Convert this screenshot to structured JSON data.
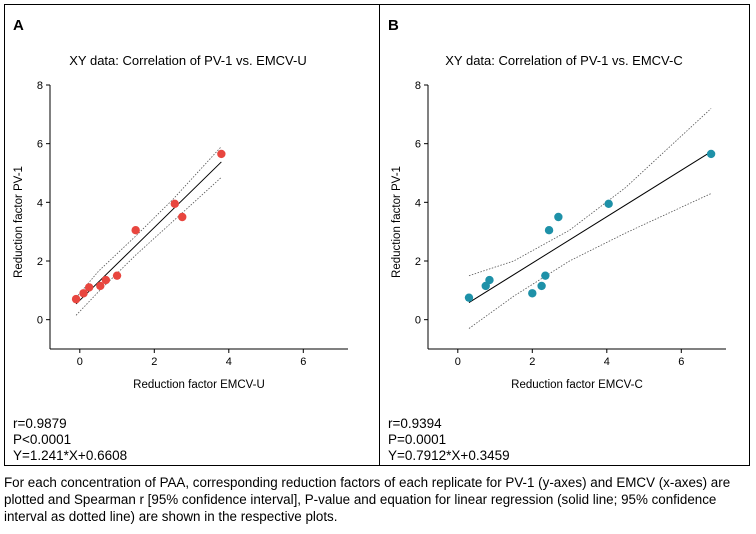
{
  "panels": [
    {
      "letter": "A",
      "stats": [
        "r=0.9879",
        "P<0.0001",
        "Y=1.241*X+0.6608"
      ]
    },
    {
      "letter": "B",
      "stats": [
        "r=0.9394",
        "P=0.0001",
        "Y=0.7912*X+0.3459"
      ]
    }
  ],
  "caption": "For each concentration of PAA, corresponding reduction factors of each replicate for PV-1 (y-axes) and EMCV (x-axes) are plotted and Spearman r [95% confidence interval], P-value and equation for linear regression (solid line; 95% confidence interval as dotted line) are shown in the respective plots.",
  "chart_data": [
    {
      "type": "scatter",
      "title": "XY data: Correlation of PV-1 vs. EMCV-U",
      "xlabel": "Reduction factor EMCV-U",
      "ylabel": "Reduction factor PV-1",
      "xlim": [
        -0.8,
        7.2
      ],
      "ylim": [
        -1,
        8
      ],
      "xticks": [
        0,
        2,
        4,
        6
      ],
      "yticks": [
        0,
        2,
        4,
        6,
        8
      ],
      "point_color": "#e8463f",
      "x": [
        -0.1,
        0.1,
        0.25,
        0.55,
        0.7,
        1.0,
        1.5,
        2.55,
        2.75,
        3.8
      ],
      "y": [
        0.7,
        0.9,
        1.1,
        1.15,
        1.35,
        1.5,
        3.05,
        3.95,
        3.5,
        5.65
      ],
      "regression": {
        "slope": 1.241,
        "intercept": 0.6608,
        "x_range": [
          -0.1,
          3.8
        ]
      },
      "ci_upper": [
        [
          -0.1,
          0.75
        ],
        [
          0.5,
          1.65
        ],
        [
          1.5,
          2.85
        ],
        [
          2.5,
          4.1
        ],
        [
          3.8,
          5.9
        ]
      ],
      "ci_lower": [
        [
          -0.1,
          0.15
        ],
        [
          0.5,
          0.95
        ],
        [
          1.5,
          2.2
        ],
        [
          2.5,
          3.35
        ],
        [
          3.8,
          4.85
        ]
      ]
    },
    {
      "type": "scatter",
      "title": "XY data: Correlation of PV-1 vs. EMCV-C",
      "xlabel": "Reduction factor EMCV-C",
      "ylabel": "Reduction factor PV-1",
      "xlim": [
        -0.8,
        7.2
      ],
      "ylim": [
        -1,
        8
      ],
      "xticks": [
        0,
        2,
        4,
        6
      ],
      "yticks": [
        0,
        2,
        4,
        6,
        8
      ],
      "point_color": "#1e91a8",
      "x": [
        0.3,
        0.75,
        0.85,
        2.0,
        2.25,
        2.35,
        2.45,
        2.7,
        4.05,
        6.8
      ],
      "y": [
        0.75,
        1.15,
        1.35,
        0.9,
        1.15,
        1.5,
        3.05,
        3.5,
        3.95,
        5.65
      ],
      "regression": {
        "slope": 0.7912,
        "intercept": 0.3459,
        "x_range": [
          0.3,
          6.8
        ]
      },
      "ci_upper": [
        [
          0.3,
          1.5
        ],
        [
          1.5,
          2.0
        ],
        [
          3.0,
          3.05
        ],
        [
          4.5,
          4.5
        ],
        [
          6.8,
          7.2
        ]
      ],
      "ci_lower": [
        [
          0.3,
          -0.3
        ],
        [
          1.5,
          0.8
        ],
        [
          3.0,
          2.0
        ],
        [
          4.5,
          2.95
        ],
        [
          6.8,
          4.3
        ]
      ]
    }
  ]
}
